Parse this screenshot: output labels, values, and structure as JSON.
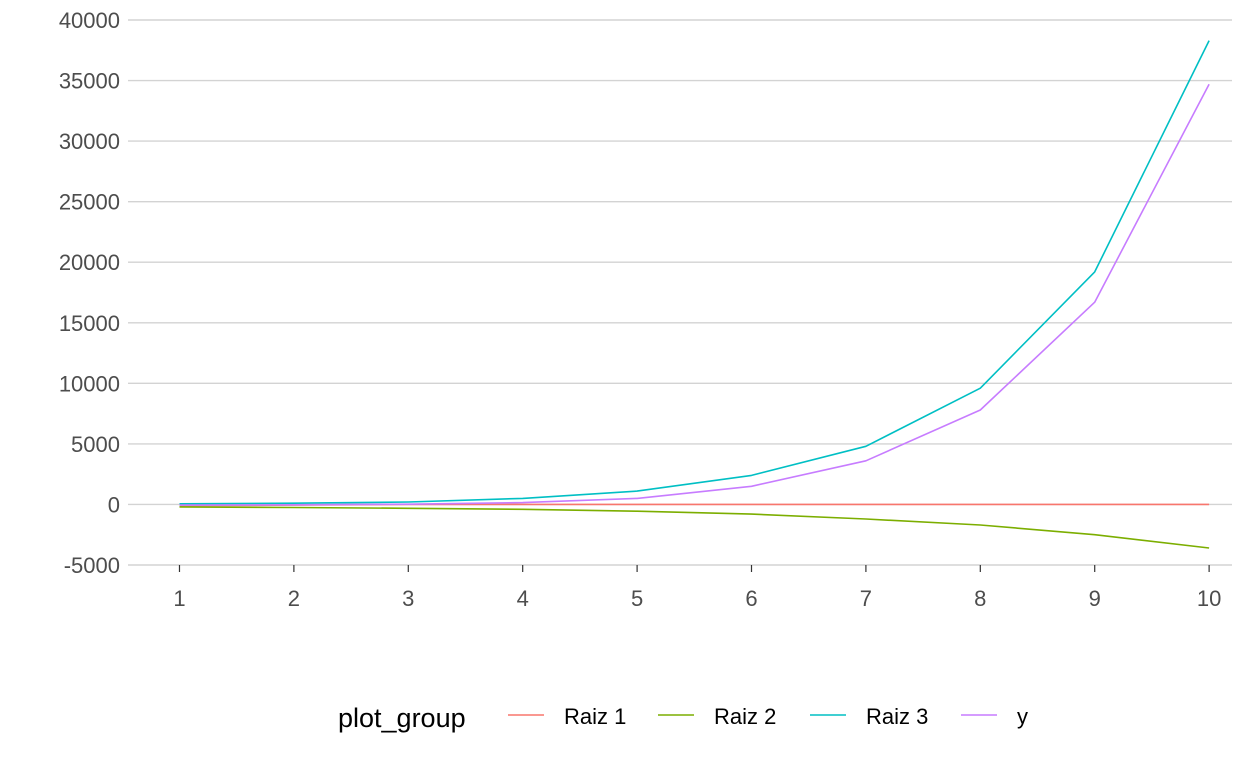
{
  "chart_data": {
    "type": "line",
    "x": [
      1,
      2,
      3,
      4,
      5,
      6,
      7,
      8,
      9,
      10
    ],
    "x_ticks": [
      "1",
      "2",
      "3",
      "4",
      "5",
      "6",
      "7",
      "8",
      "9",
      "10"
    ],
    "y_ticks": [
      "40000",
      "35000",
      "30000",
      "25000",
      "20000",
      "15000",
      "10000",
      "5000",
      "0",
      "-5000"
    ],
    "y_tick_values": [
      40000,
      35000,
      30000,
      25000,
      20000,
      15000,
      10000,
      5000,
      0,
      -5000
    ],
    "xlim": [
      0.55,
      10.2
    ],
    "ylim": [
      -5000,
      40000
    ],
    "grid": true,
    "legend": {
      "title": "plot_group",
      "position": "bottom"
    },
    "series": [
      {
        "name": "Raiz 1",
        "color": "#F8766D",
        "values": [
          -100,
          -50,
          0,
          0,
          0,
          0,
          0,
          0,
          0,
          0
        ]
      },
      {
        "name": "Raiz 2",
        "color": "#7CAE00",
        "values": [
          -200,
          -250,
          -320,
          -400,
          -560,
          -800,
          -1200,
          -1700,
          -2500,
          -3600
        ]
      },
      {
        "name": "Raiz 3",
        "color": "#00BFC4",
        "values": [
          50,
          100,
          200,
          500,
          1100,
          2400,
          4800,
          9600,
          19200,
          38300
        ]
      },
      {
        "name": "y",
        "color": "#C77CFF",
        "values": [
          -50,
          -30,
          20,
          150,
          500,
          1500,
          3600,
          7800,
          16700,
          34700
        ]
      }
    ]
  }
}
